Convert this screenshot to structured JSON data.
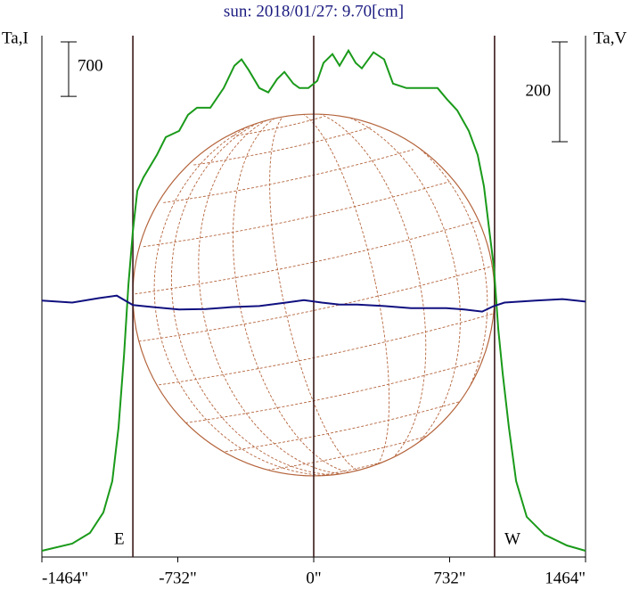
{
  "chart_data": {
    "type": "line",
    "title": "sun: 2018/01/27: 9.70[cm]",
    "y_label": "Ta,I",
    "y2_label": "Ta,V",
    "xlim": [
      -1464,
      1464
    ],
    "xticks": [
      {
        "value": -1464,
        "label": "-1464\""
      },
      {
        "value": -732,
        "label": "-732\""
      },
      {
        "value": 0,
        "label": "0\""
      },
      {
        "value": 732,
        "label": "732\""
      },
      {
        "value": 1464,
        "label": "1464\""
      }
    ],
    "ylim": [
      0,
      6700
    ],
    "y2lim": [
      -510,
      535
    ],
    "vlines": [
      -974,
      0,
      974
    ],
    "annotations": [
      "E",
      "W"
    ],
    "scale_bars": [
      {
        "value": 700,
        "axis": "y"
      },
      {
        "value": 200,
        "axis": "y2"
      }
    ],
    "series": [
      {
        "name": "I",
        "color": "#1a9a1a",
        "axis": "y",
        "x": [
          -1464,
          -1301,
          -1205,
          -1133,
          -1085,
          -1051,
          -1022,
          -998,
          -974,
          -950,
          -917,
          -845,
          -797,
          -725,
          -677,
          -629,
          -557,
          -485,
          -427,
          -389,
          -350,
          -293,
          -245,
          -197,
          -158,
          -110,
          -77,
          -29,
          19,
          53,
          101,
          139,
          187,
          226,
          259,
          322,
          379,
          427,
          499,
          571,
          667,
          715,
          773,
          835,
          883,
          917,
          946,
          970,
          994,
          1018,
          1051,
          1090,
          1147,
          1243,
          1363,
          1464
        ],
        "values": [
          80,
          172,
          310,
          574,
          976,
          1665,
          2583,
          3501,
          4190,
          4707,
          4879,
          5166,
          5396,
          5476,
          5683,
          5774,
          5774,
          6027,
          6314,
          6395,
          6257,
          6027,
          5970,
          6142,
          6234,
          6084,
          6027,
          6027,
          6119,
          6349,
          6463,
          6314,
          6509,
          6349,
          6280,
          6486,
          6395,
          6084,
          6027,
          6027,
          6027,
          5889,
          5740,
          5476,
          5166,
          4764,
          4190,
          3731,
          2927,
          2353,
          1665,
          976,
          517,
          287,
          149,
          80
        ]
      },
      {
        "name": "V",
        "color": "#101080",
        "axis": "y2",
        "x": [
          -1464,
          -1301,
          -1157,
          -1061,
          -974,
          -869,
          -725,
          -581,
          -437,
          -293,
          -149,
          -53,
          43,
          139,
          235,
          379,
          523,
          715,
          811,
          907,
          970,
          1027,
          1195,
          1339,
          1464
        ],
        "values": [
          4,
          0,
          9,
          14,
          -5,
          -9,
          -14,
          -13,
          -9,
          -7,
          0,
          5,
          0,
          -4,
          -4,
          -7,
          -11,
          -11,
          -14,
          -18,
          -7,
          0,
          4,
          7,
          2
        ]
      }
    ]
  }
}
